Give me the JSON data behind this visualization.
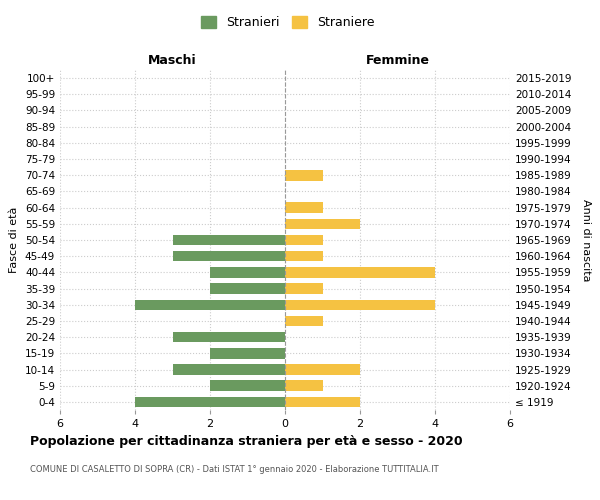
{
  "age_groups": [
    "100+",
    "95-99",
    "90-94",
    "85-89",
    "80-84",
    "75-79",
    "70-74",
    "65-69",
    "60-64",
    "55-59",
    "50-54",
    "45-49",
    "40-44",
    "35-39",
    "30-34",
    "25-29",
    "20-24",
    "15-19",
    "10-14",
    "5-9",
    "0-4"
  ],
  "birth_years": [
    "≤ 1919",
    "1920-1924",
    "1925-1929",
    "1930-1934",
    "1935-1939",
    "1940-1944",
    "1945-1949",
    "1950-1954",
    "1955-1959",
    "1960-1964",
    "1965-1969",
    "1970-1974",
    "1975-1979",
    "1980-1984",
    "1985-1989",
    "1990-1994",
    "1995-1999",
    "2000-2004",
    "2005-2009",
    "2010-2014",
    "2015-2019"
  ],
  "males": [
    0,
    0,
    0,
    0,
    0,
    0,
    0,
    0,
    0,
    0,
    3,
    3,
    2,
    2,
    4,
    0,
    3,
    2,
    3,
    2,
    4
  ],
  "females": [
    0,
    0,
    0,
    0,
    0,
    0,
    1,
    0,
    1,
    2,
    1,
    1,
    4,
    1,
    4,
    1,
    0,
    0,
    2,
    1,
    2
  ],
  "male_color": "#6a9a5f",
  "female_color": "#f5c242",
  "title": "Popolazione per cittadinanza straniera per età e sesso - 2020",
  "subtitle": "COMUNE DI CASALETTO DI SOPRA (CR) - Dati ISTAT 1° gennaio 2020 - Elaborazione TUTTITALIA.IT",
  "legend_male": "Stranieri",
  "legend_female": "Straniere",
  "xlabel_left": "Maschi",
  "xlabel_right": "Femmine",
  "ylabel_left": "Fasce di età",
  "ylabel_right": "Anni di nascita",
  "xlim": 6,
  "bg_color": "#ffffff",
  "grid_color": "#cccccc"
}
